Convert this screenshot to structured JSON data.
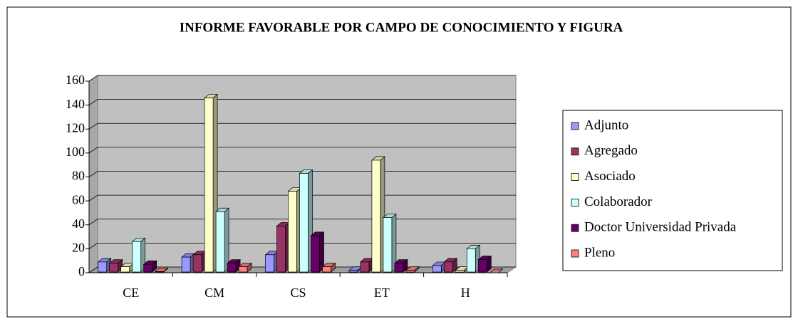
{
  "chart_data": {
    "type": "bar3d",
    "title": "INFORME FAVORABLE POR CAMPO DE CONOCIMIENTO Y FIGURA",
    "categories": [
      "CE",
      "CM",
      "CS",
      "ET",
      "H"
    ],
    "series": [
      {
        "name": "Adjunto",
        "color": "#9999ff",
        "values": [
          9,
          13,
          15,
          2,
          6
        ]
      },
      {
        "name": "Agregado",
        "color": "#993366",
        "values": [
          8,
          15,
          39,
          9,
          9
        ]
      },
      {
        "name": "Asociado",
        "color": "#ffffcc",
        "values": [
          5,
          146,
          68,
          94,
          2
        ]
      },
      {
        "name": "Colaborador",
        "color": "#ccffff",
        "values": [
          26,
          51,
          83,
          46,
          20
        ]
      },
      {
        "name": "Doctor Universidad Privada",
        "color": "#660066",
        "values": [
          7,
          8,
          31,
          8,
          11
        ]
      },
      {
        "name": "Pleno",
        "color": "#ff8080",
        "values": [
          1,
          5,
          5,
          2,
          0
        ]
      }
    ],
    "ylim": [
      0,
      160
    ],
    "yticks": [
      0,
      20,
      40,
      60,
      80,
      100,
      120,
      140,
      160
    ],
    "grid": true,
    "legend": "right"
  }
}
